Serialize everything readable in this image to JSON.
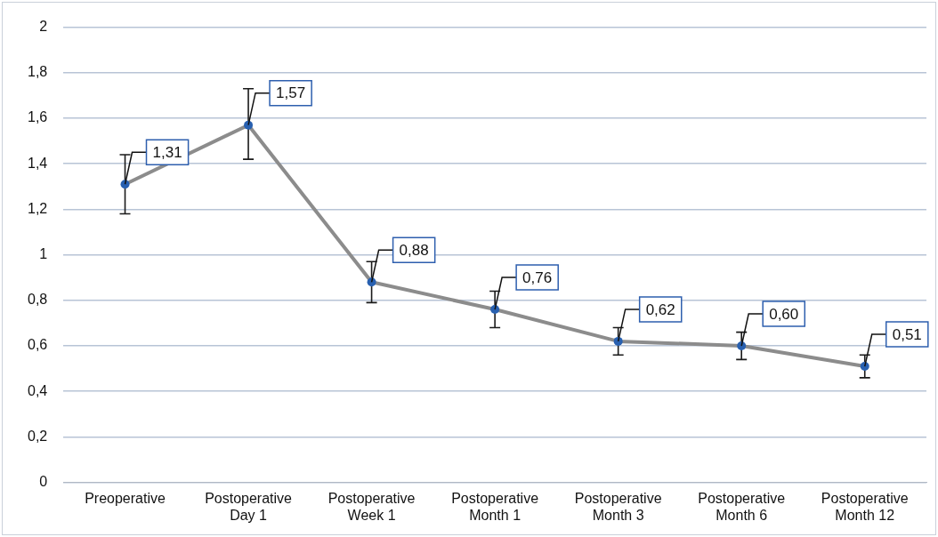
{
  "chart_data": {
    "type": "line",
    "categories": [
      "Preoperative",
      "Postoperative Day 1",
      "Postoperative Week 1",
      "Postoperative Month 1",
      "Postoperative Month 3",
      "Postoperative Month 6",
      "Postoperative Month 12"
    ],
    "series": [
      {
        "color": "#8c8c8c",
        "values": [
          1.31,
          1.57,
          0.88,
          0.76,
          0.62,
          0.6,
          0.51
        ],
        "value_labels": [
          "1,31",
          "1,57",
          "0,88",
          "0,76",
          "0,62",
          "0,60",
          "0,51"
        ],
        "errors": [
          [
            1.18,
            1.44
          ],
          [
            1.42,
            1.73
          ],
          [
            0.79,
            0.97
          ],
          [
            0.68,
            0.84
          ],
          [
            0.56,
            0.68
          ],
          [
            0.54,
            0.66
          ],
          [
            0.46,
            0.56
          ]
        ]
      }
    ],
    "ylim": [
      0,
      2
    ],
    "yticks": [
      0,
      {
        "value": 0.2,
        "label": "0,2"
      },
      {
        "value": 0.4,
        "label": "0,4"
      },
      {
        "value": 0.6,
        "label": "0,6"
      },
      {
        "value": 0.8,
        "label": "0,8"
      },
      1,
      {
        "value": 1.2,
        "label": "1,2"
      },
      {
        "value": 1.4,
        "label": "1,4"
      },
      {
        "value": 1.6,
        "label": "1,6"
      },
      {
        "value": 1.8,
        "label": "1,8"
      },
      2
    ],
    "grid": "y",
    "legend": false,
    "marker": "circle",
    "line_style": "solid"
  }
}
